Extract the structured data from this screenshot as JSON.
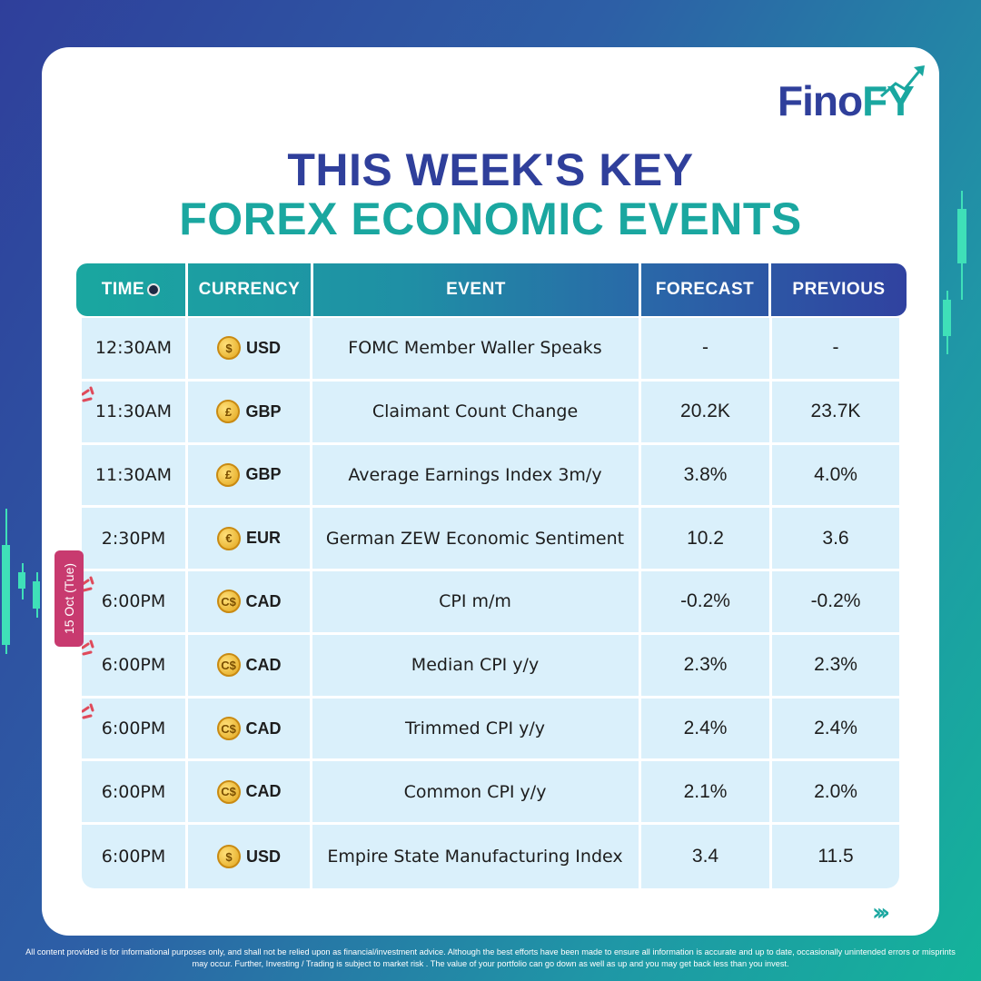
{
  "brand": {
    "name_main": "Fino",
    "name_accent": "FY"
  },
  "title": {
    "line1": "THIS WEEK'S KEY",
    "line2": "FOREX ECONOMIC EVENTS"
  },
  "date_tab": "15 Oct (Tue)",
  "columns": [
    "TIME",
    "CURRENCY",
    "EVENT",
    "FORECAST",
    "PREVIOUS"
  ],
  "rows": [
    {
      "time": "12:30AM",
      "currency_symbol": "$",
      "currency": "USD",
      "event": "FOMC Member Waller Speaks",
      "forecast": "-",
      "previous": "-",
      "flag": false
    },
    {
      "time": "11:30AM",
      "currency_symbol": "£",
      "currency": "GBP",
      "event": "Claimant Count Change",
      "forecast": "20.2K",
      "previous": "23.7K",
      "flag": true
    },
    {
      "time": "11:30AM",
      "currency_symbol": "£",
      "currency": "GBP",
      "event": "Average Earnings Index 3m/y",
      "forecast": "3.8%",
      "previous": "4.0%",
      "flag": false
    },
    {
      "time": "2:30PM",
      "currency_symbol": "€",
      "currency": "EUR",
      "event": "German ZEW Economic Sentiment",
      "forecast": "10.2",
      "previous": "3.6",
      "flag": false
    },
    {
      "time": "6:00PM",
      "currency_symbol": "C$",
      "currency": "CAD",
      "event": "CPI m/m",
      "forecast": "-0.2%",
      "previous": "-0.2%",
      "flag": true
    },
    {
      "time": "6:00PM",
      "currency_symbol": "C$",
      "currency": "CAD",
      "event": "Median CPI y/y",
      "forecast": "2.3%",
      "previous": "2.3%",
      "flag": true
    },
    {
      "time": "6:00PM",
      "currency_symbol": "C$",
      "currency": "CAD",
      "event": "Trimmed CPI y/y",
      "forecast": "2.4%",
      "previous": "2.4%",
      "flag": true
    },
    {
      "time": "6:00PM",
      "currency_symbol": "C$",
      "currency": "CAD",
      "event": "Common CPI y/y",
      "forecast": "2.1%",
      "previous": "2.0%",
      "flag": false
    },
    {
      "time": "6:00PM",
      "currency_symbol": "$",
      "currency": "USD",
      "event": "Empire State Manufacturing Index",
      "forecast": "3.4",
      "previous": "11.5",
      "flag": false
    }
  ],
  "nav_arrows": "›››",
  "disclaimer": "All content provided is for informational purposes only, and shall not be relied upon as financial/investment advice. Although the best efforts have been made to ensure all information is accurate and up to date, occasionally unintended errors or misprints may occur. Further, Investing / Trading is subject to market risk . The value of your portfolio can go down as well as up and you may get back less than you invest.",
  "colors": {
    "navy": "#2f3f9b",
    "teal": "#1aa7a0",
    "row_bg": "#daf0fb",
    "date_tab": "#c83a6f"
  }
}
